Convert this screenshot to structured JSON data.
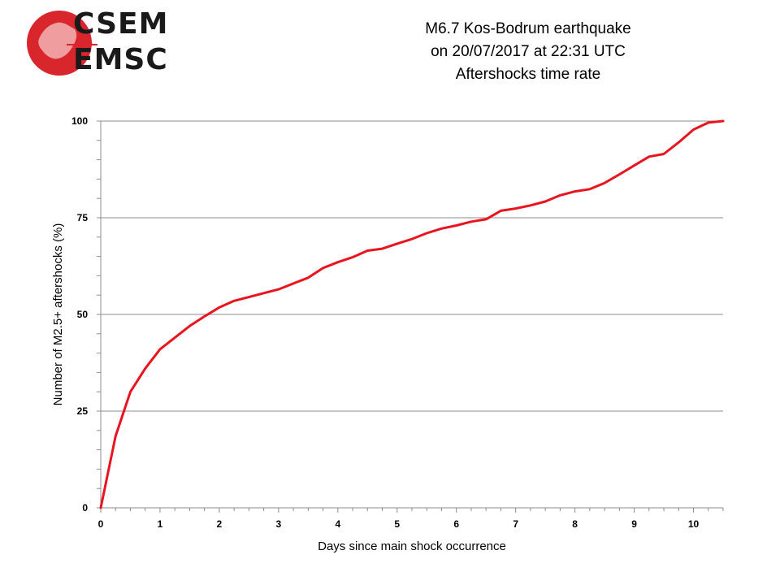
{
  "logo": {
    "top_text": "CSEM",
    "bottom_text": "EMSC",
    "icon": "globe-map-icon",
    "accent_color": "#d9262c"
  },
  "title_lines": [
    "M6.7 Kos-Bodrum earthquake",
    "on 20/07/2017 at 22:31 UTC",
    "Aftershocks time rate"
  ],
  "chart_data": {
    "type": "line",
    "xlabel": "Days since main shock occurrence",
    "ylabel": "Number of M2.5+ aftershocks (%)",
    "xlim": [
      0,
      10.5
    ],
    "ylim": [
      0,
      100
    ],
    "xticks": [
      0,
      1,
      2,
      3,
      4,
      5,
      6,
      7,
      8,
      9,
      10
    ],
    "yticks": [
      0,
      25,
      50,
      75,
      100
    ],
    "grid": "horizontal",
    "line_color": "#e8141e",
    "series": [
      {
        "x": [
          0,
          0.25,
          0.5,
          0.75,
          1,
          1.25,
          1.5,
          1.75,
          2,
          2.25,
          2.5,
          2.75,
          3,
          3.25,
          3.5,
          3.75,
          4,
          4.25,
          4.5,
          4.75,
          5,
          5.25,
          5.5,
          5.75,
          6,
          6.25,
          6.5,
          6.75,
          7,
          7.25,
          7.5,
          7.75,
          8,
          8.25,
          8.5,
          8.75,
          9,
          9.25,
          9.5,
          9.75,
          10,
          10.25,
          10.5
        ],
        "values": [
          0,
          18.5,
          30,
          36,
          41,
          44,
          47,
          49.5,
          51.8,
          53.5,
          54.5,
          55.5,
          56.5,
          58,
          59.5,
          62,
          63.5,
          64.8,
          66.5,
          67,
          68.3,
          69.5,
          71,
          72.2,
          73,
          74,
          74.6,
          76.8,
          77.4,
          78.2,
          79.2,
          80.8,
          81.8,
          82.4,
          84,
          86.2,
          88.5,
          90.8,
          91.5,
          94.5,
          97.8,
          99.6,
          100
        ]
      }
    ]
  }
}
